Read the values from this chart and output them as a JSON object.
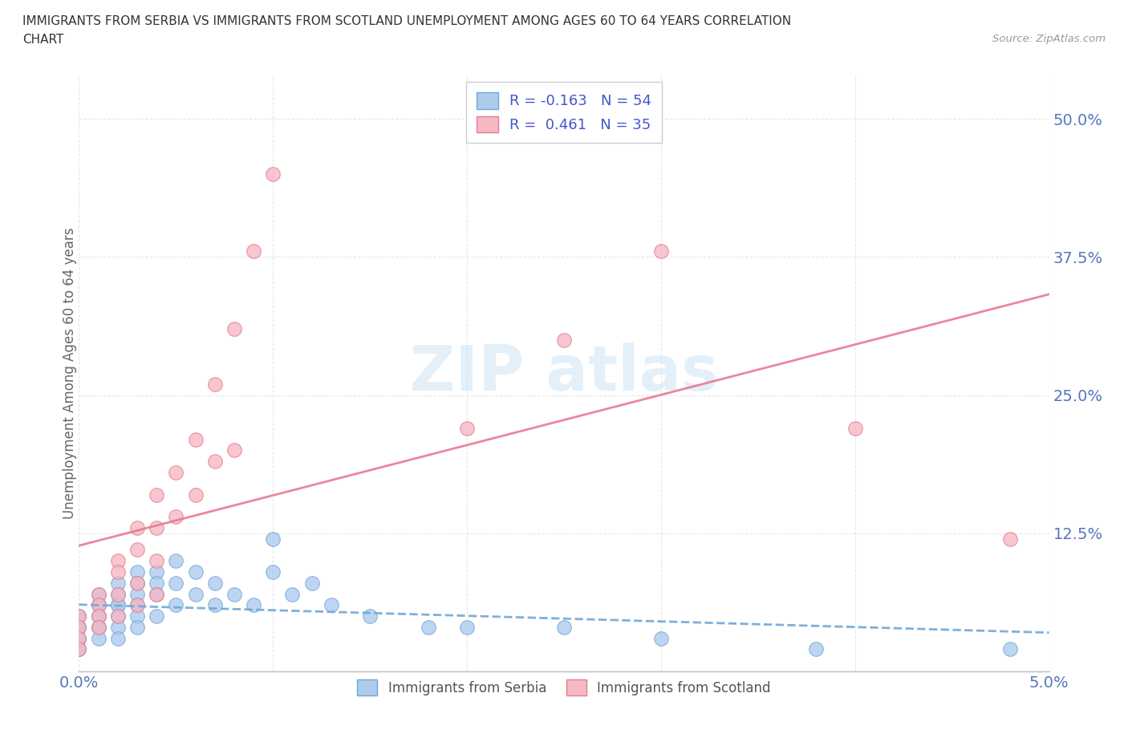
{
  "title_line1": "IMMIGRANTS FROM SERBIA VS IMMIGRANTS FROM SCOTLAND UNEMPLOYMENT AMONG AGES 60 TO 64 YEARS CORRELATION",
  "title_line2": "CHART",
  "source": "Source: ZipAtlas.com",
  "ylabel": "Unemployment Among Ages 60 to 64 years",
  "legend_serbia": "Immigrants from Serbia",
  "legend_scotland": "Immigrants from Scotland",
  "serbia_R": -0.163,
  "serbia_N": 54,
  "scotland_R": 0.461,
  "scotland_N": 35,
  "serbia_color": "#aecbee",
  "scotland_color": "#f5b8c4",
  "serbia_edge_color": "#6fa8d6",
  "scotland_edge_color": "#e87a90",
  "serbia_line_color": "#6fa8d6",
  "scotland_line_color": "#e87a90",
  "xlim": [
    0.0,
    0.05
  ],
  "ylim": [
    0.0,
    0.54
  ],
  "xticks": [
    0.0,
    0.01,
    0.02,
    0.03,
    0.04,
    0.05
  ],
  "xticklabels": [
    "0.0%",
    "",
    "",
    "",
    "",
    "5.0%"
  ],
  "yticks": [
    0.0,
    0.125,
    0.25,
    0.375,
    0.5
  ],
  "yticklabels": [
    "",
    "12.5%",
    "25.0%",
    "37.5%",
    "50.0%"
  ],
  "serbia_x": [
    0.0,
    0.0,
    0.0,
    0.0,
    0.0,
    0.0,
    0.0,
    0.0,
    0.001,
    0.001,
    0.001,
    0.001,
    0.001,
    0.001,
    0.001,
    0.001,
    0.002,
    0.002,
    0.002,
    0.002,
    0.002,
    0.002,
    0.002,
    0.003,
    0.003,
    0.003,
    0.003,
    0.003,
    0.003,
    0.004,
    0.004,
    0.004,
    0.004,
    0.005,
    0.005,
    0.005,
    0.006,
    0.006,
    0.007,
    0.007,
    0.008,
    0.009,
    0.01,
    0.01,
    0.011,
    0.012,
    0.013,
    0.015,
    0.018,
    0.02,
    0.025,
    0.03,
    0.038,
    0.048
  ],
  "serbia_y": [
    0.05,
    0.05,
    0.04,
    0.04,
    0.03,
    0.03,
    0.02,
    0.02,
    0.07,
    0.06,
    0.06,
    0.05,
    0.05,
    0.04,
    0.04,
    0.03,
    0.08,
    0.07,
    0.06,
    0.06,
    0.05,
    0.04,
    0.03,
    0.09,
    0.08,
    0.07,
    0.06,
    0.05,
    0.04,
    0.09,
    0.08,
    0.07,
    0.05,
    0.1,
    0.08,
    0.06,
    0.09,
    0.07,
    0.08,
    0.06,
    0.07,
    0.06,
    0.12,
    0.09,
    0.07,
    0.08,
    0.06,
    0.05,
    0.04,
    0.04,
    0.04,
    0.03,
    0.02,
    0.02
  ],
  "scotland_x": [
    0.0,
    0.0,
    0.0,
    0.0,
    0.001,
    0.001,
    0.001,
    0.001,
    0.002,
    0.002,
    0.002,
    0.002,
    0.003,
    0.003,
    0.003,
    0.003,
    0.004,
    0.004,
    0.004,
    0.004,
    0.005,
    0.005,
    0.006,
    0.006,
    0.007,
    0.007,
    0.008,
    0.008,
    0.009,
    0.01,
    0.02,
    0.025,
    0.03,
    0.04,
    0.048
  ],
  "scotland_y": [
    0.05,
    0.04,
    0.03,
    0.02,
    0.07,
    0.06,
    0.05,
    0.04,
    0.1,
    0.09,
    0.07,
    0.05,
    0.13,
    0.11,
    0.08,
    0.06,
    0.16,
    0.13,
    0.1,
    0.07,
    0.18,
    0.14,
    0.21,
    0.16,
    0.26,
    0.19,
    0.31,
    0.2,
    0.38,
    0.45,
    0.22,
    0.3,
    0.38,
    0.22,
    0.12
  ],
  "background_color": "#ffffff",
  "grid_color": "#dddddd"
}
